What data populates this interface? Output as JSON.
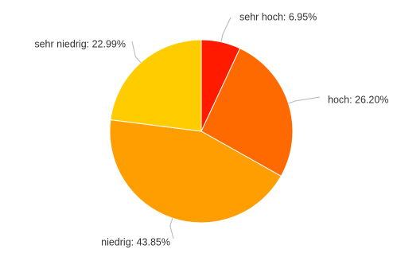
{
  "chart_data": {
    "type": "pie",
    "series": [
      {
        "name": "",
        "slices": [
          {
            "label": "sehr hoch",
            "value": 6.95,
            "display": "sehr hoch: 6.95%",
            "color": "#ff1a00"
          },
          {
            "label": "hoch",
            "value": 26.2,
            "display": "hoch: 26.20%",
            "color": "#ff6a00"
          },
          {
            "label": "niedrig",
            "value": 43.85,
            "display": "niedrig: 43.85%",
            "color": "#ff9e00"
          },
          {
            "label": "sehr niedrig",
            "value": 22.99,
            "display": "sehr niedrig: 22.99%",
            "color": "#ffcc00"
          }
        ]
      }
    ],
    "start_angle": "12 o'clock",
    "direction": "clockwise",
    "legend": "none",
    "data_labels": "outside with leader lines"
  }
}
